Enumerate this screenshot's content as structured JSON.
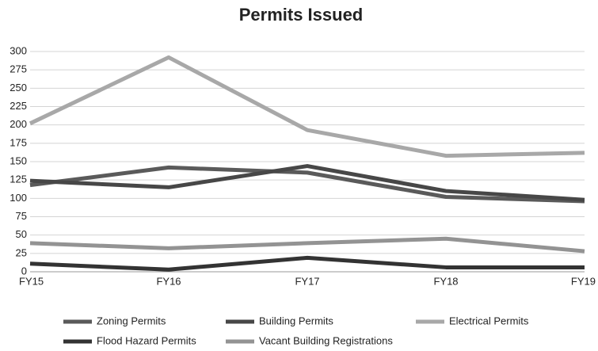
{
  "chart_data": {
    "type": "line",
    "title": "Permits Issued",
    "categories": [
      "FY15",
      "FY16",
      "FY17",
      "FY18",
      "FY19"
    ],
    "series": [
      {
        "name": "Zoning Permits",
        "color": "#5a5a5a",
        "values": [
          118,
          142,
          135,
          102,
          96
        ]
      },
      {
        "name": "Building Permits",
        "color": "#474747",
        "values": [
          124,
          115,
          144,
          110,
          98
        ]
      },
      {
        "name": "Electrical Permits",
        "color": "#a8a8a8",
        "values": [
          202,
          292,
          193,
          158,
          162
        ]
      },
      {
        "name": "Flood Hazard Permits",
        "color": "#333333",
        "values": [
          11,
          3,
          19,
          6,
          6
        ]
      },
      {
        "name": "Vacant Building Registrations",
        "color": "#939393",
        "values": [
          39,
          32,
          39,
          45,
          28
        ]
      }
    ],
    "ylim": [
      0,
      300
    ],
    "yticks": [
      0,
      25,
      50,
      75,
      100,
      125,
      150,
      175,
      200,
      225,
      250,
      275,
      300
    ],
    "grid": true
  }
}
